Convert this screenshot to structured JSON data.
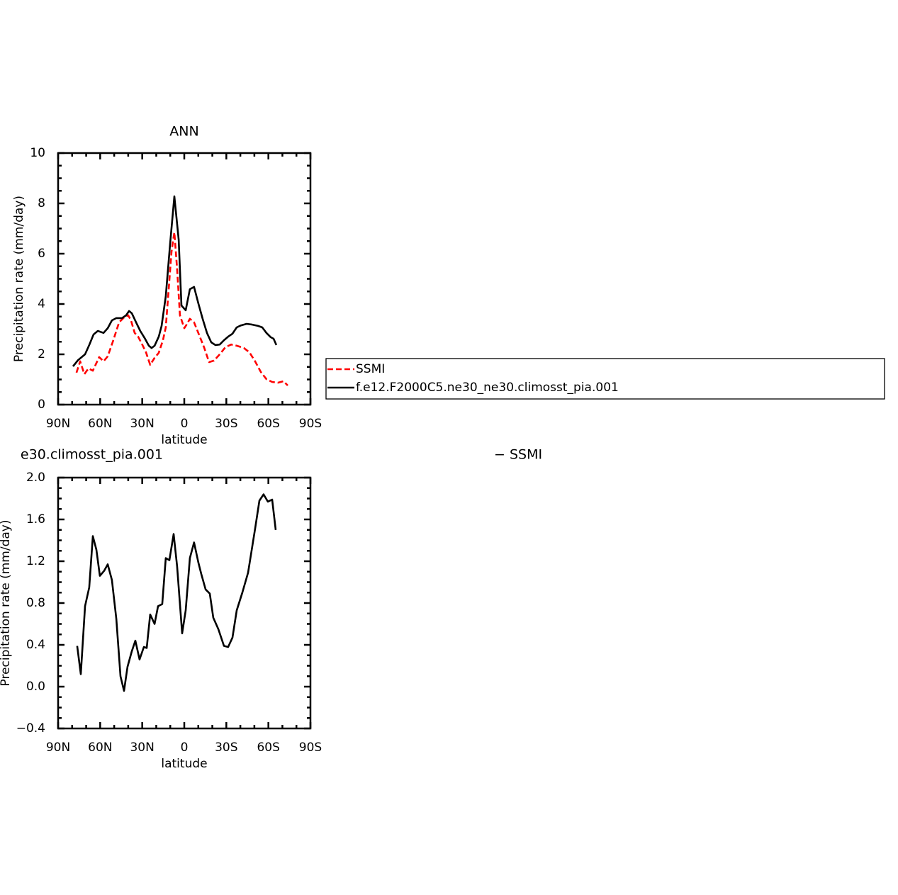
{
  "chart_data": [
    {
      "type": "line",
      "title": "ANN",
      "x_label": "latitude",
      "y_label": "Precipitation rate (mm/day)",
      "xlim": [
        90,
        -90
      ],
      "xticks": [
        {
          "value": 90,
          "label": "90N"
        },
        {
          "value": 60,
          "label": "60N"
        },
        {
          "value": 30,
          "label": "30N"
        },
        0,
        {
          "value": -30,
          "label": "30S"
        },
        {
          "value": -60,
          "label": "60S"
        },
        {
          "value": -90,
          "label": "90S"
        }
      ],
      "ylim": [
        0,
        10
      ],
      "yticks": [
        0,
        2,
        4,
        6,
        8,
        10
      ],
      "legend": "right",
      "series": [
        {
          "name": "SSMI",
          "color": "#ff0000",
          "dashed": true,
          "x": [
            76.9,
            74.3,
            71.3,
            68.3,
            65.2,
            60.7,
            57.6,
            54.6,
            50.6,
            46.5,
            42.5,
            40,
            38,
            35.4,
            32.9,
            30.3,
            27.3,
            24.3,
            21.2,
            18.2,
            15.2,
            13.2,
            11.1,
            9.1,
            7.1,
            5.1,
            3.1,
            0,
            -2,
            -4,
            -7,
            -10,
            -14.1,
            -17.7,
            -21.2,
            -25.3,
            -29.3,
            -33.4,
            -37.4,
            -42.5,
            -46.5,
            -50.5,
            -54.6,
            -58.6,
            -62.7,
            -66.7,
            -70.8,
            -73.8
          ],
          "values": [
            1.27,
            1.72,
            1.21,
            1.44,
            1.35,
            1.89,
            1.72,
            1.92,
            2.56,
            3.27,
            3.49,
            3.55,
            3.35,
            2.85,
            2.7,
            2.42,
            2.08,
            1.58,
            1.86,
            2.06,
            2.56,
            3.07,
            4.59,
            6.08,
            6.85,
            5.38,
            3.55,
            3.04,
            3.21,
            3.41,
            3.27,
            2.85,
            2.28,
            1.69,
            1.75,
            2.0,
            2.28,
            2.39,
            2.34,
            2.25,
            2.08,
            1.72,
            1.3,
            1.01,
            0.9,
            0.87,
            0.93,
            0.76
          ]
        },
        {
          "name": "f.e12.F2000C5.ne30_ne30.climosst_pia.001",
          "color": "#000000",
          "dashed": false,
          "x": [
            79.4,
            75.8,
            70.8,
            67.8,
            64.7,
            61.7,
            57.6,
            54.6,
            51.6,
            48.5,
            44.5,
            41.5,
            39.4,
            37.4,
            34.4,
            31.4,
            28.3,
            25.3,
            23.3,
            21.2,
            18.2,
            16.2,
            13.2,
            10.1,
            7.1,
            4.0,
            2.0,
            -1,
            -4,
            -7,
            -10,
            -13.1,
            -16.2,
            -19.2,
            -22.2,
            -25.3,
            -28.3,
            -31.3,
            -34.4,
            -37.4,
            -40.4,
            -44.5,
            -48.5,
            -52.6,
            -55.6,
            -58.6,
            -61.7,
            -63.7,
            -65.7
          ],
          "values": [
            1.52,
            1.77,
            2.0,
            2.37,
            2.79,
            2.93,
            2.85,
            3.04,
            3.35,
            3.44,
            3.44,
            3.55,
            3.72,
            3.63,
            3.27,
            2.93,
            2.65,
            2.34,
            2.25,
            2.34,
            2.7,
            3.13,
            4.31,
            6.39,
            8.28,
            6.56,
            3.94,
            3.75,
            4.59,
            4.68,
            4.03,
            3.41,
            2.85,
            2.48,
            2.37,
            2.39,
            2.56,
            2.7,
            2.82,
            3.07,
            3.15,
            3.21,
            3.18,
            3.13,
            3.07,
            2.85,
            2.68,
            2.62,
            2.37
          ]
        }
      ]
    },
    {
      "type": "line",
      "title": "e30.climosst_pia.001",
      "subtitle": "− SSMI",
      "x_label": "latitude",
      "y_label": "Precipitation rate (mm/day)",
      "xlim": [
        90,
        -90
      ],
      "xticks": [
        {
          "value": 90,
          "label": "90N"
        },
        {
          "value": 60,
          "label": "60N"
        },
        {
          "value": 30,
          "label": "30N"
        },
        0,
        {
          "value": -30,
          "label": "30S"
        },
        {
          "value": -60,
          "label": "60S"
        },
        {
          "value": -90,
          "label": "90S"
        }
      ],
      "ylim": [
        -0.4,
        2.0
      ],
      "yticks": [
        {
          "value": -0.4,
          "label": "−0.4"
        },
        {
          "value": 0,
          "label": "0.0"
        },
        0.4,
        0.8,
        1.2,
        1.6,
        {
          "value": 2,
          "label": "2.0"
        }
      ],
      "series": [
        {
          "color": "#000000",
          "dashed": false,
          "x": [
            76.4,
            73.8,
            70.8,
            67.8,
            65.2,
            62.7,
            60.2,
            57.1,
            54.6,
            51.6,
            48.5,
            45.5,
            43.0,
            40.5,
            37.4,
            34.9,
            31.9,
            28.8,
            26.8,
            24.3,
            21.2,
            18.7,
            15.7,
            13.2,
            10.6,
            7.6,
            5.1,
            1.5,
            -1,
            -4,
            -7,
            -10,
            -12.1,
            -15.2,
            -18.2,
            -20.7,
            -24.3,
            -28.3,
            -31.3,
            -34.4,
            -37.4,
            -41.4,
            -45.5,
            -50.5,
            -53.6,
            -56.6,
            -59.6,
            -62.7,
            -65.2
          ],
          "values": [
            0.39,
            0.12,
            0.77,
            0.95,
            1.44,
            1.31,
            1.06,
            1.11,
            1.17,
            1.02,
            0.65,
            0.1,
            -0.04,
            0.19,
            0.34,
            0.44,
            0.26,
            0.38,
            0.37,
            0.69,
            0.6,
            0.77,
            0.79,
            1.23,
            1.21,
            1.46,
            1.15,
            0.51,
            0.73,
            1.23,
            1.38,
            1.19,
            1.08,
            0.93,
            0.89,
            0.66,
            0.55,
            0.39,
            0.38,
            0.47,
            0.73,
            0.9,
            1.09,
            1.51,
            1.78,
            1.84,
            1.77,
            1.79,
            1.5
          ]
        }
      ]
    }
  ]
}
